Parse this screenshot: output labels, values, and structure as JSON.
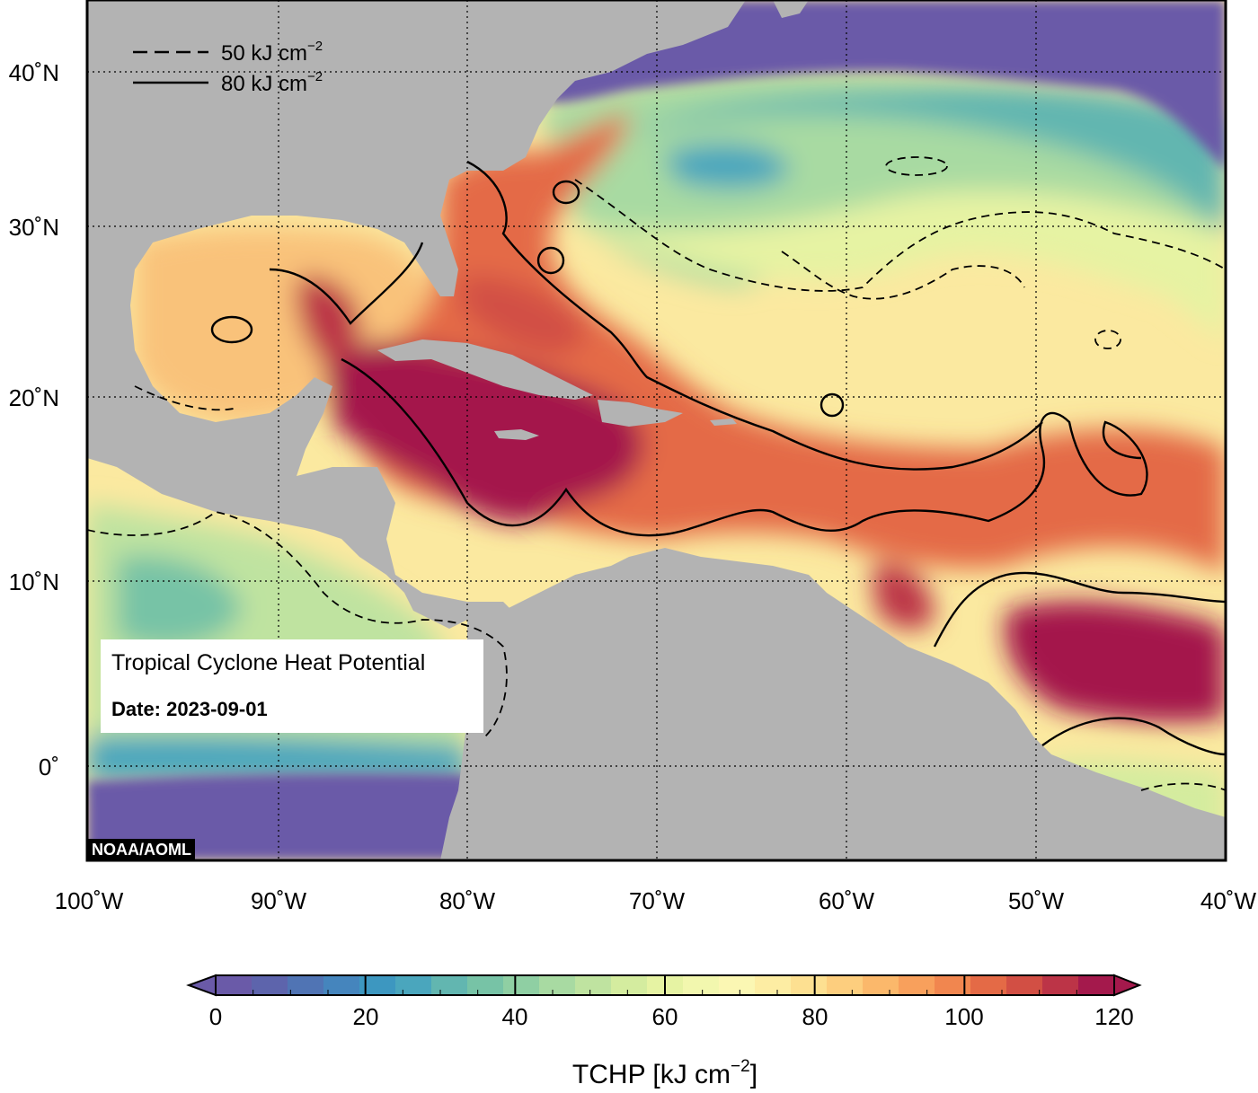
{
  "map": {
    "title": "Tropical Cyclone Heat Potential",
    "date_label": "Date: 2023-09-01",
    "credit": "NOAA/AOML",
    "lat_labels": [
      "40˚N",
      "30˚N",
      "20˚N",
      "10˚N",
      "0˚"
    ],
    "lon_labels": [
      "100˚W",
      "90˚W",
      "80˚W",
      "70˚W",
      "60˚W",
      "50˚W",
      "40˚W"
    ],
    "contour_legend": [
      {
        "style": "dashed",
        "value": "50",
        "unit": "kJ cm",
        "exp": "−2"
      },
      {
        "style": "solid",
        "value": "80",
        "unit": "kJ cm",
        "exp": "−2"
      }
    ],
    "colorbar": {
      "min": 0,
      "max": 120,
      "step": 5,
      "tick_labels": [
        "0",
        "20",
        "40",
        "60",
        "80",
        "100",
        "120"
      ],
      "title": "TCHP [kJ cm",
      "title_exp": "−2",
      "title_end": "]",
      "colors": [
        "#6a5aa8",
        "#5d64ac",
        "#5074b4",
        "#4585bd",
        "#3d97c0",
        "#4aa6bd",
        "#62b6b0",
        "#77c3a6",
        "#8fcfa3",
        "#a8daa2",
        "#bfe3a0",
        "#d4ec9f",
        "#e6f3a3",
        "#f2f7ae",
        "#fbf7b3",
        "#fdeda3",
        "#fde091",
        "#fdce7e",
        "#fbb86b",
        "#f8a05c",
        "#f1864f",
        "#e46a46",
        "#d24f44",
        "#bc3447",
        "#a4194c"
      ]
    },
    "colors": {
      "land": "#b3b3b3",
      "deep_ocean": "#6a5aa8",
      "warm_core": "#a4194c",
      "frame": "#000000"
    }
  }
}
